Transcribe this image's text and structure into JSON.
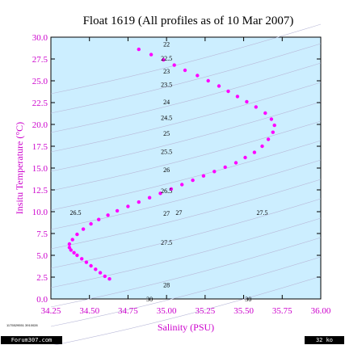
{
  "chart_data": {
    "type": "scatter",
    "title": "Float 1619  (All profiles as of 10 Mar 2007)",
    "xlabel": "Salinity (PSU)",
    "ylabel": "Insitu Temperature (°C)",
    "xlim": [
      34.25,
      36.0
    ],
    "ylim": [
      0.0,
      30.0
    ],
    "xticks": [
      "34.25",
      "34.50",
      "34.75",
      "35.00",
      "35.25",
      "35.50",
      "35.75",
      "36.00"
    ],
    "yticks": [
      "0.0",
      "2.5",
      "5.0",
      "7.5",
      "10.0",
      "12.5",
      "15.0",
      "17.5",
      "20.0",
      "22.5",
      "25.0",
      "27.5",
      "30.0"
    ],
    "grid": false,
    "colors": {
      "points": "#ff00ff",
      "axis_text": "#cc00cc",
      "plot_bg": "#cceeff",
      "contours": "#b8b8d8"
    },
    "series": [
      {
        "x": [
          34.63,
          34.6,
          34.57,
          34.54,
          34.51,
          34.48,
          34.45,
          34.42,
          34.4,
          34.38,
          34.37,
          34.37,
          34.39,
          34.42,
          34.46,
          34.51,
          34.56,
          34.62,
          34.68,
          34.75,
          34.82,
          34.89,
          34.96,
          35.03,
          35.1,
          35.17,
          35.24,
          35.31,
          35.38,
          35.45,
          35.51,
          35.57,
          35.62,
          35.66,
          35.69,
          35.7,
          35.68,
          35.64,
          35.58,
          35.52,
          35.46,
          35.4,
          35.34,
          35.27,
          35.2,
          35.12,
          35.05,
          34.98,
          34.9,
          34.82
        ],
        "y": [
          2.3,
          2.6,
          3.0,
          3.4,
          3.8,
          4.2,
          4.6,
          5.0,
          5.3,
          5.6,
          5.9,
          6.3,
          6.8,
          7.4,
          8.0,
          8.6,
          9.1,
          9.6,
          10.1,
          10.6,
          11.1,
          11.6,
          12.1,
          12.6,
          13.1,
          13.6,
          14.1,
          14.6,
          15.1,
          15.6,
          16.2,
          16.8,
          17.5,
          18.3,
          19.1,
          19.9,
          20.6,
          21.3,
          22.0,
          22.6,
          23.2,
          23.8,
          24.4,
          25.0,
          25.6,
          26.2,
          26.8,
          27.4,
          28.0,
          28.6
        ]
      }
    ],
    "contour_labels": [
      {
        "text": "22",
        "x": 35.0,
        "y": 29.2
      },
      {
        "text": "22.5",
        "x": 35.0,
        "y": 27.6
      },
      {
        "text": "23",
        "x": 35.0,
        "y": 26.1
      },
      {
        "text": "23.5",
        "x": 35.0,
        "y": 24.6
      },
      {
        "text": "24",
        "x": 35.0,
        "y": 22.6
      },
      {
        "text": "24.5",
        "x": 35.0,
        "y": 20.8
      },
      {
        "text": "25",
        "x": 35.0,
        "y": 19.0
      },
      {
        "text": "25.5",
        "x": 35.0,
        "y": 16.9
      },
      {
        "text": "26",
        "x": 35.0,
        "y": 14.8
      },
      {
        "text": "26.5",
        "x": 35.0,
        "y": 12.4
      },
      {
        "text": "26.5",
        "x": 34.41,
        "y": 9.9
      },
      {
        "text": "27",
        "x": 35.0,
        "y": 9.8
      },
      {
        "text": "27",
        "x": 35.08,
        "y": 9.9
      },
      {
        "text": "27.5",
        "x": 35.0,
        "y": 6.5
      },
      {
        "text": "27.5",
        "x": 35.62,
        "y": 9.9
      },
      {
        "text": "28",
        "x": 35.0,
        "y": 1.6
      },
      {
        "text": "30",
        "x": 34.89,
        "y": 0.0
      },
      {
        "text": "30",
        "x": 35.53,
        "y": 0.0
      }
    ]
  },
  "footer": {
    "left_badge": "Forum307.com",
    "right_badge": "32 ko",
    "stamp": "1175529551 3910028"
  }
}
